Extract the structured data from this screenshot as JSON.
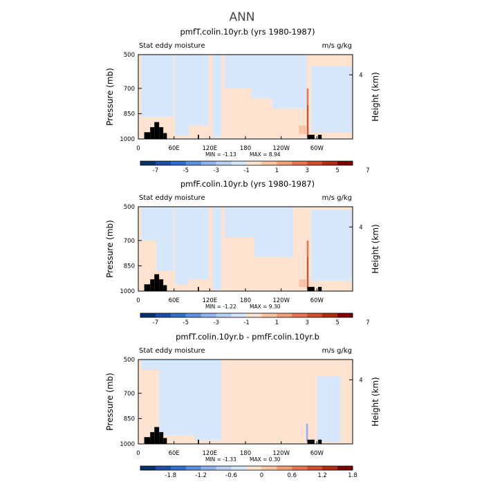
{
  "figure": {
    "title": "ANN"
  },
  "chart_data": [
    {
      "type": "heatmap",
      "title": "pmfT.colin.10yr.b (yrs 1980-1987)",
      "subtitle_left": "Stat eddy moisture",
      "subtitle_right": "m/s g/kg",
      "ylabel": "Pressure (mb)",
      "ylabel_right": "Height (km)",
      "y_ticks": [
        "500",
        "700",
        "850",
        "1000"
      ],
      "y_tick_values": [
        500,
        700,
        850,
        1000
      ],
      "right_tick": "4",
      "right_tick_pressure": 620,
      "x_ticks": [
        "0",
        "60E",
        "120E",
        "180",
        "120W",
        "60W"
      ],
      "x_tick_values": [
        0,
        60,
        120,
        180,
        240,
        300
      ],
      "xlim": [
        0,
        360
      ],
      "ylim": [
        500,
        1000
      ],
      "min_label": "MIN = -1.13",
      "max_label": "MAX = 8.94",
      "colorbar_ticks": [
        "-7",
        "-5",
        "-3",
        "-1",
        "1",
        "3",
        "5",
        "7"
      ],
      "colorbar_colors": [
        "#08306b",
        "#1c4fa8",
        "#2f6fd0",
        "#5b8fe0",
        "#8fb2ec",
        "#b9cff3",
        "#d7e7fb",
        "#fde2cf",
        "#f9c3a4",
        "#f29e78",
        "#e87552",
        "#d44e2e",
        "#b22c15",
        "#7f0000"
      ],
      "values_summary": {
        "min": -1.13,
        "max": 8.94
      },
      "regions": [
        {
          "color_index": 7,
          "lon": [
            0,
            360
          ],
          "p": [
            500,
            1000
          ]
        },
        {
          "color_index": 6,
          "lon": [
            5,
            60
          ],
          "p": [
            500,
            870
          ]
        },
        {
          "color_index": 6,
          "lon": [
            62,
            85
          ],
          "p": [
            500,
            980
          ]
        },
        {
          "color_index": 6,
          "lon": [
            85,
            118
          ],
          "p": [
            500,
            920
          ]
        },
        {
          "color_index": 6,
          "lon": [
            125,
            140
          ],
          "p": [
            500,
            990
          ]
        },
        {
          "color_index": 6,
          "lon": [
            145,
            190
          ],
          "p": [
            500,
            700
          ]
        },
        {
          "color_index": 6,
          "lon": [
            190,
            225
          ],
          "p": [
            500,
            760
          ]
        },
        {
          "color_index": 6,
          "lon": [
            225,
            283
          ],
          "p": [
            500,
            820
          ]
        },
        {
          "color_index": 6,
          "lon": [
            290,
            360
          ],
          "p": [
            570,
            960
          ]
        },
        {
          "color_index": 8,
          "lon": [
            270,
            282
          ],
          "p": [
            920,
            970
          ]
        },
        {
          "color_index": 10,
          "lon": [
            283,
            286
          ],
          "p": [
            700,
            990
          ]
        },
        {
          "color_index": 12,
          "lon": [
            284,
            285
          ],
          "p": [
            800,
            985
          ]
        }
      ],
      "topography": [
        {
          "lon": [
            10,
            20
          ],
          "p": 960
        },
        {
          "lon": [
            20,
            27
          ],
          "p": 930
        },
        {
          "lon": [
            27,
            35
          ],
          "p": 900
        },
        {
          "lon": [
            35,
            42
          ],
          "p": 930
        },
        {
          "lon": [
            42,
            48
          ],
          "p": 965
        },
        {
          "lon": [
            100,
            102
          ],
          "p": 975
        },
        {
          "lon": [
            284,
            296
          ],
          "p": 975
        },
        {
          "lon": [
            302,
            308
          ],
          "p": 975
        }
      ]
    },
    {
      "type": "heatmap",
      "title": "pmfF.colin.10yr.b (yrs 1980-1987)",
      "subtitle_left": "Stat eddy moisture",
      "subtitle_right": "m/s g/kg",
      "ylabel": "Pressure (mb)",
      "ylabel_right": "Height (km)",
      "y_ticks": [
        "500",
        "700",
        "850",
        "1000"
      ],
      "y_tick_values": [
        500,
        700,
        850,
        1000
      ],
      "right_tick": "4",
      "right_tick_pressure": 620,
      "x_ticks": [
        "0",
        "60E",
        "120E",
        "180",
        "120W",
        "60W"
      ],
      "x_tick_values": [
        0,
        60,
        120,
        180,
        240,
        300
      ],
      "xlim": [
        0,
        360
      ],
      "ylim": [
        500,
        1000
      ],
      "min_label": "MIN = -1.22",
      "max_label": "MAX = 9.30",
      "colorbar_ticks": [
        "-7",
        "-5",
        "-3",
        "-1",
        "1",
        "3",
        "5",
        "7"
      ],
      "colorbar_colors": [
        "#08306b",
        "#1c4fa8",
        "#2f6fd0",
        "#5b8fe0",
        "#8fb2ec",
        "#b9cff3",
        "#d7e7fb",
        "#fde2cf",
        "#f9c3a4",
        "#f29e78",
        "#e87552",
        "#d44e2e",
        "#b22c15",
        "#7f0000"
      ],
      "values_summary": {
        "min": -1.22,
        "max": 9.3
      },
      "regions": [
        {
          "color_index": 7,
          "lon": [
            0,
            360
          ],
          "p": [
            500,
            1000
          ]
        },
        {
          "color_index": 6,
          "lon": [
            5,
            30
          ],
          "p": [
            500,
            700
          ]
        },
        {
          "color_index": 6,
          "lon": [
            30,
            60
          ],
          "p": [
            500,
            880
          ]
        },
        {
          "color_index": 6,
          "lon": [
            62,
            85
          ],
          "p": [
            500,
            960
          ]
        },
        {
          "color_index": 6,
          "lon": [
            85,
            118
          ],
          "p": [
            500,
            930
          ]
        },
        {
          "color_index": 6,
          "lon": [
            125,
            140
          ],
          "p": [
            500,
            990
          ]
        },
        {
          "color_index": 6,
          "lon": [
            145,
            195
          ],
          "p": [
            500,
            680
          ]
        },
        {
          "color_index": 6,
          "lon": [
            195,
            260
          ],
          "p": [
            500,
            800
          ]
        },
        {
          "color_index": 6,
          "lon": [
            290,
            360
          ],
          "p": [
            520,
            940
          ]
        },
        {
          "color_index": 8,
          "lon": [
            270,
            282
          ],
          "p": [
            930,
            975
          ]
        },
        {
          "color_index": 10,
          "lon": [
            283,
            286
          ],
          "p": [
            700,
            990
          ]
        },
        {
          "color_index": 12,
          "lon": [
            284,
            285
          ],
          "p": [
            800,
            985
          ]
        }
      ],
      "topography": [
        {
          "lon": [
            10,
            20
          ],
          "p": 960
        },
        {
          "lon": [
            20,
            27
          ],
          "p": 930
        },
        {
          "lon": [
            27,
            35
          ],
          "p": 900
        },
        {
          "lon": [
            35,
            42
          ],
          "p": 930
        },
        {
          "lon": [
            42,
            48
          ],
          "p": 965
        },
        {
          "lon": [
            100,
            102
          ],
          "p": 975
        },
        {
          "lon": [
            284,
            296
          ],
          "p": 975
        },
        {
          "lon": [
            302,
            308
          ],
          "p": 975
        }
      ]
    },
    {
      "type": "heatmap",
      "title": "pmfT.colin.10yr.b - pmfF.colin.10yr.b",
      "subtitle_left": "Stat eddy moisture",
      "subtitle_right": "m/s g/kg",
      "ylabel": "Pressure (mb)",
      "ylabel_right": "Height (km)",
      "y_ticks": [
        "500",
        "700",
        "850",
        "1000"
      ],
      "y_tick_values": [
        500,
        700,
        850,
        1000
      ],
      "right_tick": "4",
      "right_tick_pressure": 620,
      "x_ticks": [
        "0",
        "60E",
        "120E",
        "180",
        "120W",
        "60W"
      ],
      "x_tick_values": [
        0,
        60,
        120,
        180,
        240,
        300
      ],
      "xlim": [
        0,
        360
      ],
      "ylim": [
        500,
        1000
      ],
      "min_label": "MIN = -1.33",
      "max_label": "MAX = 0.30",
      "colorbar_ticks": [
        "-1.8",
        "-1.2",
        "-0.6",
        "0",
        "0.6",
        "1.2",
        "1.8"
      ],
      "colorbar_colors": [
        "#08306b",
        "#1c4fa8",
        "#2f6fd0",
        "#5b8fe0",
        "#8fb2ec",
        "#b9cff3",
        "#d7e7fb",
        "#fde2cf",
        "#f9c3a4",
        "#f29e78",
        "#e87552",
        "#d44e2e",
        "#b22c15",
        "#7f0000"
      ],
      "values_summary": {
        "min": -1.33,
        "max": 0.3
      },
      "regions": [
        {
          "color_index": 7,
          "lon": [
            0,
            360
          ],
          "p": [
            500,
            1000
          ]
        },
        {
          "color_index": 6,
          "lon": [
            5,
            40
          ],
          "p": [
            500,
            560
          ]
        },
        {
          "color_index": 6,
          "lon": [
            35,
            95
          ],
          "p": [
            500,
            950
          ]
        },
        {
          "color_index": 6,
          "lon": [
            95,
            140
          ],
          "p": [
            500,
            980
          ]
        },
        {
          "color_index": 6,
          "lon": [
            300,
            340
          ],
          "p": [
            600,
            990
          ]
        },
        {
          "color_index": 4,
          "lon": [
            282,
            285
          ],
          "p": [
            880,
            985
          ]
        }
      ],
      "topography": [
        {
          "lon": [
            10,
            20
          ],
          "p": 960
        },
        {
          "lon": [
            20,
            27
          ],
          "p": 930
        },
        {
          "lon": [
            27,
            35
          ],
          "p": 900
        },
        {
          "lon": [
            35,
            42
          ],
          "p": 930
        },
        {
          "lon": [
            42,
            48
          ],
          "p": 965
        },
        {
          "lon": [
            100,
            102
          ],
          "p": 975
        },
        {
          "lon": [
            284,
            296
          ],
          "p": 975
        },
        {
          "lon": [
            302,
            308
          ],
          "p": 975
        }
      ]
    }
  ]
}
